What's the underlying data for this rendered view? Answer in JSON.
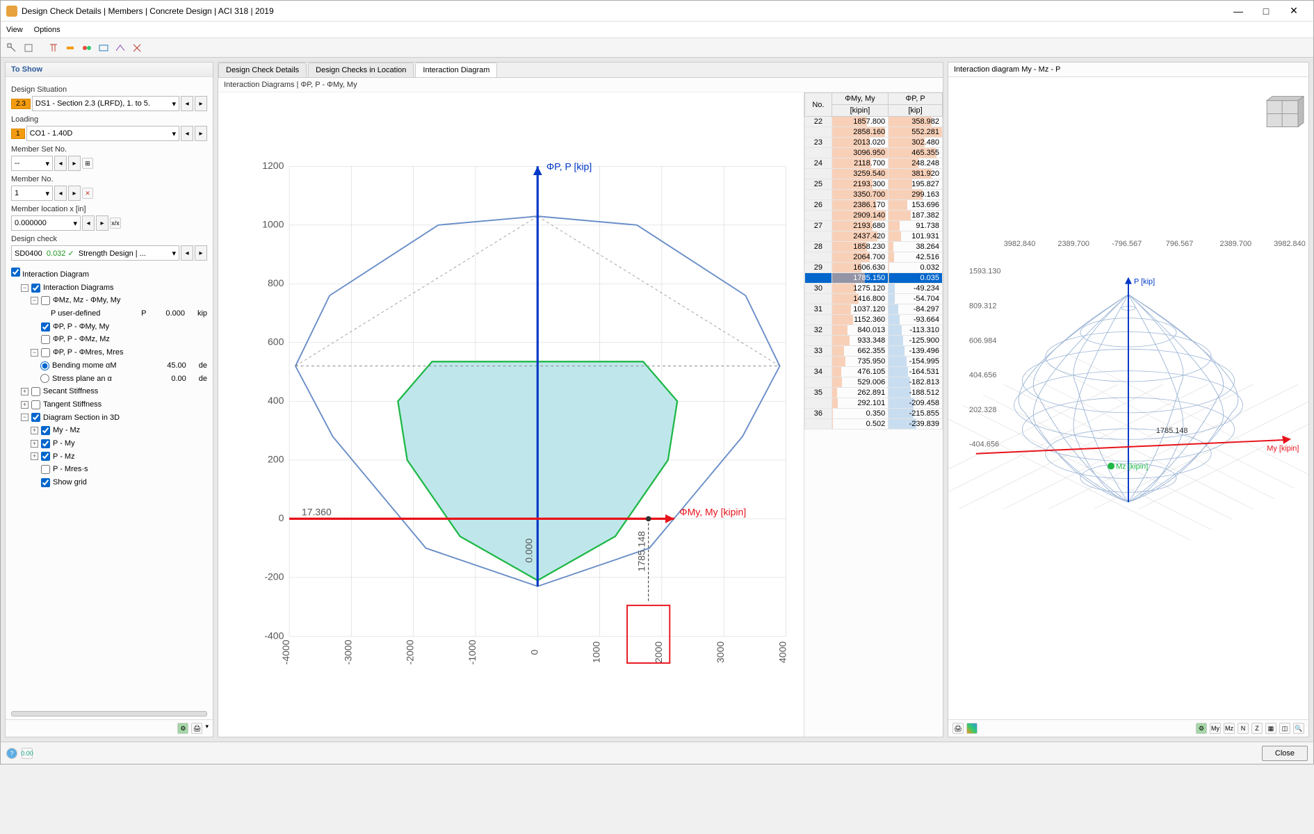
{
  "window": {
    "title": "Design Check Details | Members | Concrete Design | ACI 318 | 2019"
  },
  "menubar": [
    "View",
    "Options"
  ],
  "left": {
    "header": "To Show",
    "design_situation_label": "Design Situation",
    "design_situation_badge": "2.3",
    "design_situation_value": "DS1 - Section 2.3 (LRFD), 1. to 5.",
    "loading_label": "Loading",
    "loading_badge": "1",
    "loading_value": "CO1 - 1.40D",
    "memberset_label": "Member Set No.",
    "memberset_value": "-- ",
    "memberno_label": "Member No.",
    "memberno_value": "1",
    "memberloc_label": "Member location x [in]",
    "memberloc_value": "0.000000",
    "designcheck_label": "Design check",
    "designcheck_code": "SD0400",
    "designcheck_val": "0.032",
    "designcheck_name": "Strength Design | ...",
    "interaction_label": "Interaction Diagram",
    "tree": {
      "t0": "Interaction Diagrams",
      "t1": "ΦMz, Mz - ΦMy, My",
      "t1a": "P user-defined",
      "t1a_sym": "P",
      "t1a_val": "0.000",
      "t1a_unit": "kip",
      "t2": "ΦP, P - ΦMy, My",
      "t3": "ΦP, P - ΦMz, Mz",
      "t4": "ΦP, P - ΦMres, Mres",
      "t4a": "Bending mome αM",
      "t4a_val": "45.00",
      "t4a_unit": "de",
      "t4b": "Stress plane an α",
      "t4b_val": "0.00",
      "t4b_unit": "de",
      "t5": "Secant Stiffness",
      "t6": "Tangent Stiffness",
      "t7": "Diagram Section in 3D",
      "t7a": "My - Mz",
      "t7b": "P - My",
      "t7c": "P - Mz",
      "t7d": "P - Mres·s",
      "t7e": "Show grid"
    }
  },
  "center": {
    "tabs": [
      "Design Check Details",
      "Design Checks in Location",
      "Interaction Diagram"
    ],
    "subtitle": "Interaction Diagrams | ΦP, P - ΦMy, My",
    "chart": {
      "y_label": "ΦP, P [kip]",
      "x_label": "ΦMy, My [kipin]",
      "y_ticks": [
        -400,
        -200,
        0,
        200,
        400,
        600,
        800,
        1000,
        1200
      ],
      "x_ticks": [
        -4000,
        -3000,
        -2000,
        -1000,
        0,
        1000,
        2000,
        3000,
        4000
      ],
      "marker_x_label": "1785.148",
      "marker_y_label": "0.000",
      "origin_label": "17.360",
      "outer_curve_color": "#6a8ec8",
      "inner_fill_color": "#bfe7eb",
      "inner_stroke_color": "#1fb847",
      "axis_arrow_blue": "#0037c7",
      "axis_arrow_red": "#e8121a",
      "grid_color": "#d9d9d9",
      "highlight_box_color": "#e8121a",
      "outer_curve": [
        [
          0,
          -230
        ],
        [
          1800,
          -100
        ],
        [
          3300,
          280
        ],
        [
          3900,
          520
        ],
        [
          3350,
          760
        ],
        [
          1600,
          1000
        ],
        [
          0,
          1030
        ],
        [
          -1600,
          1000
        ],
        [
          -3350,
          760
        ],
        [
          -3900,
          520
        ],
        [
          -3300,
          280
        ],
        [
          -1800,
          -100
        ],
        [
          0,
          -230
        ]
      ],
      "inner_curve": [
        [
          0,
          -210
        ],
        [
          1250,
          -60
        ],
        [
          2100,
          200
        ],
        [
          2250,
          400
        ],
        [
          1700,
          535
        ],
        [
          300,
          535
        ],
        [
          -300,
          535
        ],
        [
          -1700,
          535
        ],
        [
          -2250,
          400
        ],
        [
          -2100,
          200
        ],
        [
          -1250,
          -60
        ],
        [
          0,
          -210
        ]
      ]
    },
    "table": {
      "headers": [
        "No.",
        "ΦMy, My\n[kipin]",
        "ΦP, P\n[kip]"
      ],
      "rows": [
        {
          "no": "22",
          "m": "1857.800",
          "p": "358.982",
          "mw": 62,
          "pw": 80
        },
        {
          "no": "",
          "m": "2858.160",
          "p": "552.281",
          "mw": 95,
          "pw": 100
        },
        {
          "no": "23",
          "m": "2013.020",
          "p": "302.480",
          "mw": 67,
          "pw": 68
        },
        {
          "no": "",
          "m": "3096.950",
          "p": "465.355",
          "mw": 100,
          "pw": 90
        },
        {
          "no": "24",
          "m": "2118.700",
          "p": "248.248",
          "mw": 70,
          "pw": 56
        },
        {
          "no": "",
          "m": "3259.540",
          "p": "381.920",
          "mw": 100,
          "pw": 80
        },
        {
          "no": "25",
          "m": "2193.300",
          "p": "195.827",
          "mw": 73,
          "pw": 44
        },
        {
          "no": "",
          "m": "3350.700",
          "p": "299.163",
          "mw": 100,
          "pw": 64
        },
        {
          "no": "26",
          "m": "2386.170",
          "p": "153.696",
          "mw": 79,
          "pw": 35
        },
        {
          "no": "",
          "m": "2909.140",
          "p": "187.382",
          "mw": 96,
          "pw": 42
        },
        {
          "no": "27",
          "m": "2193.680",
          "p": "91.738",
          "mw": 73,
          "pw": 21
        },
        {
          "no": "",
          "m": "2437.420",
          "p": "101.931",
          "mw": 81,
          "pw": 23
        },
        {
          "no": "28",
          "m": "1858.230",
          "p": "38.264",
          "mw": 62,
          "pw": 9
        },
        {
          "no": "",
          "m": "2064.700",
          "p": "42.516",
          "mw": 68,
          "pw": 10
        },
        {
          "no": "29",
          "m": "1606.630",
          "p": "0.032",
          "mw": 53,
          "pw": 1
        },
        {
          "no": "",
          "m": "1785.150",
          "p": "0.035",
          "mw": 59,
          "pw": 1,
          "selected": true
        },
        {
          "no": "30",
          "m": "1275.120",
          "p": "-49.234",
          "mw": 42,
          "pw": 11,
          "neg": true
        },
        {
          "no": "",
          "m": "1416.800",
          "p": "-54.704",
          "mw": 47,
          "pw": 12,
          "neg": true
        },
        {
          "no": "31",
          "m": "1037.120",
          "p": "-84.297",
          "mw": 34,
          "pw": 18,
          "neg": true
        },
        {
          "no": "",
          "m": "1152.360",
          "p": "-93.664",
          "mw": 38,
          "pw": 20,
          "neg": true
        },
        {
          "no": "32",
          "m": "840.013",
          "p": "-113.310",
          "mw": 28,
          "pw": 25,
          "neg": true
        },
        {
          "no": "",
          "m": "933.348",
          "p": "-125.900",
          "mw": 31,
          "pw": 27,
          "neg": true
        },
        {
          "no": "33",
          "m": "662.355",
          "p": "-139.496",
          "mw": 22,
          "pw": 30,
          "neg": true
        },
        {
          "no": "",
          "m": "735.950",
          "p": "-154.995",
          "mw": 24,
          "pw": 34,
          "neg": true
        },
        {
          "no": "34",
          "m": "476.105",
          "p": "-164.531",
          "mw": 16,
          "pw": 36,
          "neg": true
        },
        {
          "no": "",
          "m": "529.006",
          "p": "-182.813",
          "mw": 18,
          "pw": 40,
          "neg": true
        },
        {
          "no": "35",
          "m": "262.891",
          "p": "-188.512",
          "mw": 9,
          "pw": 41,
          "neg": true
        },
        {
          "no": "",
          "m": "292.101",
          "p": "-209.458",
          "mw": 10,
          "pw": 46,
          "neg": true
        },
        {
          "no": "36",
          "m": "0.350",
          "p": "-215.855",
          "mw": 1,
          "pw": 47,
          "neg": true
        },
        {
          "no": "",
          "m": "0.502",
          "p": "-239.839",
          "mw": 1,
          "pw": 52,
          "neg": true
        }
      ]
    }
  },
  "right": {
    "title": "Interaction diagram My - Mz - P",
    "axis_p": "P [kip]",
    "axis_my": "My [kipin]",
    "axis_mz": "Mz [kipin]",
    "grid_labels_top": [
      "3982.840",
      "2389.700",
      "-796.567",
      "796.567",
      "2389.700",
      "3982.840"
    ],
    "grid_labels_left": [
      "1593.130",
      "809.312",
      "606.984",
      "404.656",
      "202.328",
      "-404.656"
    ],
    "marker": "1785.148",
    "toolbar_icons": [
      "My",
      "Mz",
      "N",
      "Z"
    ]
  },
  "footer": {
    "close": "Close"
  }
}
